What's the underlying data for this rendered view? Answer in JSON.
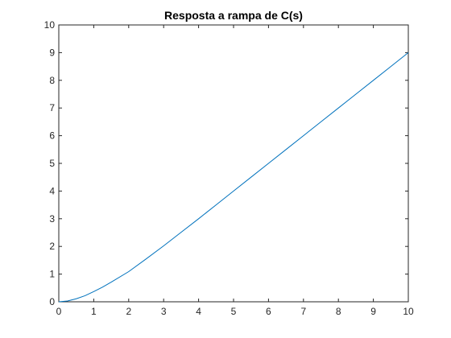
{
  "chart_data": {
    "type": "line",
    "title": "Resposta a rampa de C(s)",
    "xlabel": "",
    "ylabel": "",
    "xlim": [
      0,
      10
    ],
    "ylim": [
      0,
      10
    ],
    "xticks": [
      0,
      1,
      2,
      3,
      4,
      5,
      6,
      7,
      8,
      9,
      10
    ],
    "yticks": [
      0,
      1,
      2,
      3,
      4,
      5,
      6,
      7,
      8,
      9,
      10
    ],
    "grid": false,
    "line_color": "#0072BD",
    "axis_color": "#262626",
    "series": [
      {
        "x": [
          0,
          0.25,
          0.5,
          0.75,
          1,
          1.25,
          1.5,
          2,
          2.5,
          3,
          3.5,
          4,
          4.5,
          5,
          5.5,
          6,
          6.5,
          7,
          7.5,
          8,
          8.5,
          9,
          9.5,
          10
        ],
        "y": [
          0,
          0.03,
          0.11,
          0.22,
          0.37,
          0.53,
          0.71,
          1.09,
          1.55,
          2.02,
          2.51,
          3.0,
          3.5,
          4.0,
          4.5,
          5.0,
          5.5,
          6.0,
          6.5,
          7.0,
          7.5,
          8.0,
          8.5,
          9.0
        ]
      }
    ]
  }
}
